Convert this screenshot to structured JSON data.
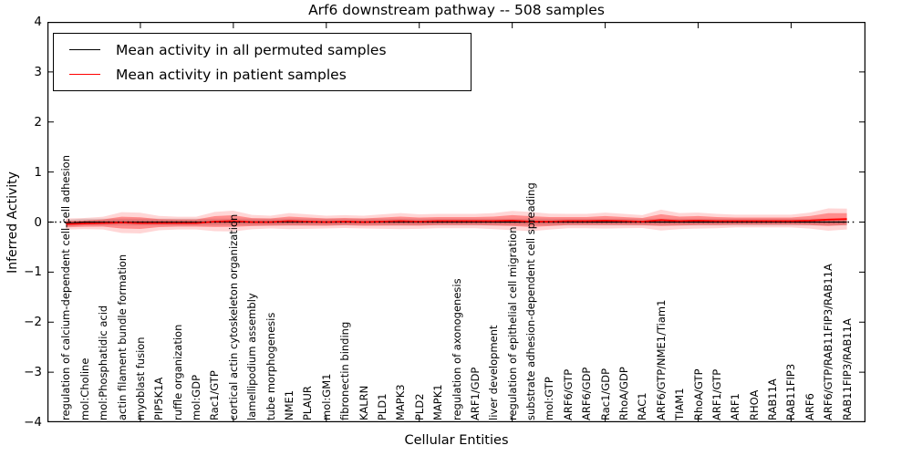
{
  "title": "Arf6 downstream pathway -- 508 samples",
  "axes": {
    "ylabel": "Inferred Activity",
    "xlabel": "Cellular Entities",
    "yticks": [
      "4",
      "3",
      "2",
      "1",
      "0",
      "−1",
      "−2",
      "−3",
      "−4"
    ]
  },
  "legend": {
    "entries": [
      {
        "label": "Mean activity in all permuted samples",
        "color": "#000000"
      },
      {
        "label": "Mean activity in patient samples",
        "color": "#ff0000"
      }
    ]
  },
  "chart_data": {
    "type": "line",
    "title": "Arf6 downstream pathway -- 508 samples",
    "xlabel": "Cellular Entities",
    "ylabel": "Inferred Activity",
    "ylim": [
      -4,
      4
    ],
    "grid": false,
    "legend_position": "upper left",
    "zero_line": "dotted",
    "categories": [
      "regulation of calcium-dependent cell-cell adhesion",
      "mol:Choline",
      "mol:Phosphatidic acid",
      "actin filament bundle formation",
      "myoblast fusion",
      "PIP5K1A",
      "ruffle organization",
      "mol:GDP",
      "Rac1/GTP",
      "cortical actin cytoskeleton organization",
      "lamellipodium assembly",
      "tube morphogenesis",
      "NME1",
      "PLAUR",
      "mol:GM1",
      "fibronectin binding",
      "KALRN",
      "PLD1",
      "MAPK3",
      "PLD2",
      "MAPK1",
      "regulation of axonogenesis",
      "ARF1/GDP",
      "liver development",
      "regulation of epithelial cell migration",
      "substrate adhesion-dependent cell spreading",
      "mol:GTP",
      "ARF6/GTP",
      "ARF6/GDP",
      "Rac1/GDP",
      "RhoA/GDP",
      "RAC1",
      "ARF6/GTP/NME1/Tiam1",
      "TIAM1",
      "RhoA/GTP",
      "ARF1/GTP",
      "ARF1",
      "RHOA",
      "RAB11A",
      "RAB11FIP3",
      "ARF6",
      "ARF6/GTP/RAB11FIP3/RAB11A",
      "RAB11FIP3/RAB11A"
    ],
    "series": [
      {
        "name": "Mean activity in all permuted samples",
        "color": "#000000",
        "values": [
          -0.02,
          0,
          0,
          0,
          0,
          0,
          0,
          0,
          0,
          0,
          0,
          0,
          0,
          0,
          0,
          0,
          0,
          0,
          0,
          0,
          0,
          0,
          0,
          0,
          0,
          0,
          0,
          0,
          0,
          0,
          0,
          0,
          0,
          0,
          0,
          0,
          0,
          0,
          0,
          0,
          0,
          0,
          0
        ],
        "std": 0.05
      },
      {
        "name": "Mean activity in patient samples",
        "color": "#ff0000",
        "values": [
          -0.04,
          -0.03,
          -0.02,
          -0.01,
          -0.02,
          -0.02,
          -0.02,
          -0.02,
          0.01,
          0.02,
          0,
          0,
          0.02,
          0.01,
          0,
          0.01,
          0,
          0.01,
          0.02,
          0.01,
          0.02,
          0.02,
          0.02,
          0.02,
          0.03,
          0.01,
          0.01,
          0.02,
          0.02,
          0.03,
          0.02,
          0.01,
          0.04,
          0.02,
          0.03,
          0.02,
          0.02,
          0.02,
          0.02,
          0.02,
          0.03,
          0.05,
          0.06
        ],
        "std": [
          0.07,
          0.07,
          0.08,
          0.13,
          0.13,
          0.09,
          0.08,
          0.08,
          0.12,
          0.13,
          0.09,
          0.08,
          0.1,
          0.09,
          0.08,
          0.08,
          0.08,
          0.09,
          0.1,
          0.09,
          0.09,
          0.09,
          0.09,
          0.1,
          0.12,
          0.12,
          0.1,
          0.09,
          0.09,
          0.1,
          0.09,
          0.08,
          0.13,
          0.1,
          0.1,
          0.09,
          0.08,
          0.08,
          0.08,
          0.08,
          0.1,
          0.14,
          0.13
        ]
      }
    ],
    "x_major_tick_every": 5
  }
}
